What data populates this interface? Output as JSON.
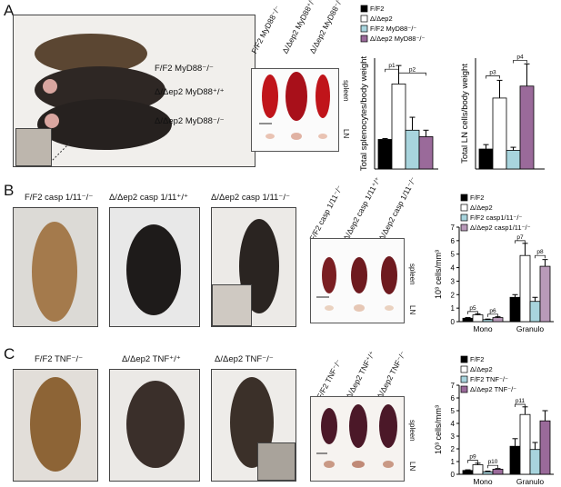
{
  "panels": {
    "A": {
      "letter": "A",
      "mouse_labels": [
        "F/F2 MyD88⁻/⁻",
        "Δ/Δep2 MyD88⁺/⁺",
        "Δ/Δep2 MyD88⁻/⁻"
      ],
      "organ_cols": [
        "F/F2 MyD88⁻/⁻",
        "Δ/Δep2 MyD88⁺/⁺",
        "Δ/Δep2 MyD88⁻/⁻"
      ],
      "organ_rows": [
        "spleen",
        "LN"
      ]
    },
    "B": {
      "letter": "B",
      "mouse_labels": [
        "F/F2 casp 1/11⁻/⁻",
        "Δ/Δep2 casp 1/11⁺/⁺",
        "Δ/Δep2 casp 1/11⁻/⁻"
      ],
      "organ_cols": [
        "F/F2 casp 1/11⁻/⁻",
        "Δ/Δep2 casp 1/11⁺/⁺",
        "Δ/Δep2 casp 1/11⁻/⁻"
      ],
      "organ_rows": [
        "spleen",
        "LN"
      ]
    },
    "C": {
      "letter": "C",
      "mouse_labels": [
        "F/F2 TNF⁻/⁻",
        "Δ/Δep2 TNF⁺/⁺",
        "Δ/Δep2 TNF⁻/⁻"
      ],
      "organ_cols": [
        "F/F2 TNF⁻/⁻",
        "Δ/Δep2 TNF⁺/⁺",
        "Δ/Δep2 TNF⁻/⁻"
      ],
      "organ_rows": [
        "spleen",
        "LN"
      ]
    }
  },
  "colors": {
    "black": "#000000",
    "white": "#ffffff",
    "blue": "#a8d4dd",
    "purple": "#9a6a9a",
    "purple_light": "#b99ab9"
  },
  "chart_data": [
    {
      "id": "A1",
      "type": "bar",
      "categories": [
        ""
      ],
      "series": [
        {
          "name": "F/F2",
          "values": [
            1.6
          ],
          "err": [
            0.05
          ],
          "color": "#000000"
        },
        {
          "name": "Δ/Δep2",
          "values": [
            4.6
          ],
          "err": [
            1.0
          ],
          "color": "#ffffff"
        },
        {
          "name": "F/F2 MyD88⁻/⁻",
          "values": [
            2.1
          ],
          "err": [
            0.7
          ],
          "color": "#a8d4dd"
        },
        {
          "name": "Δ/Δep2 MyD88⁻/⁻",
          "values": [
            1.75
          ],
          "err": [
            0.35
          ],
          "color": "#9a6a9a"
        }
      ],
      "ylim": [
        0,
        6
      ],
      "ylabel": "Total splenocytes/body weight",
      "annotations": [
        "p1",
        "p2"
      ]
    },
    {
      "id": "A2",
      "type": "bar",
      "categories": [
        ""
      ],
      "series": [
        {
          "name": "F/F2",
          "values": [
            0.45
          ],
          "err": [
            0.1
          ],
          "color": "#000000"
        },
        {
          "name": "Δ/Δep2",
          "values": [
            1.6
          ],
          "err": [
            0.4
          ],
          "color": "#ffffff"
        },
        {
          "name": "F/F2 MyD88⁻/⁻",
          "values": [
            0.42
          ],
          "err": [
            0.07
          ],
          "color": "#a8d4dd"
        },
        {
          "name": "Δ/Δep2 MyD88⁻/⁻",
          "values": [
            1.87
          ],
          "err": [
            0.5
          ],
          "color": "#9a6a9a"
        }
      ],
      "ylim": [
        0,
        2.5
      ],
      "ylabel": "Total LN cells/body weight",
      "annotations": [
        "p3",
        "p4"
      ]
    },
    {
      "id": "B",
      "type": "bar",
      "categories": [
        "Mono",
        "Granulo"
      ],
      "series": [
        {
          "name": "F/F2",
          "values": [
            0.25,
            1.8
          ],
          "err": [
            0.05,
            0.2
          ],
          "color": "#000000"
        },
        {
          "name": "Δ/Δep2",
          "values": [
            0.5,
            4.9
          ],
          "err": [
            0.08,
            0.9
          ],
          "color": "#ffffff"
        },
        {
          "name": "F/F2 casp1/11⁻/⁻",
          "values": [
            0.15,
            1.5
          ],
          "err": [
            0.04,
            0.3
          ],
          "color": "#a8d4dd"
        },
        {
          "name": "Δ/Δep2 casp1/11⁻/⁻",
          "values": [
            0.3,
            4.1
          ],
          "err": [
            0.06,
            0.5
          ],
          "color": "#b99ab9"
        }
      ],
      "ylim": [
        0,
        7
      ],
      "yticks": [
        0,
        1,
        2,
        3,
        4,
        5,
        6,
        7
      ],
      "ylabel": "10³ cells/mm³",
      "annotations": [
        "p5",
        "p6",
        "p7",
        "p8"
      ]
    },
    {
      "id": "C",
      "type": "bar",
      "categories": [
        "Mono",
        "Granulo"
      ],
      "series": [
        {
          "name": "F/F2",
          "values": [
            0.3,
            2.2
          ],
          "err": [
            0.05,
            0.6
          ],
          "color": "#000000"
        },
        {
          "name": "Δ/Δep2",
          "values": [
            0.75,
            4.7
          ],
          "err": [
            0.12,
            0.6
          ],
          "color": "#ffffff"
        },
        {
          "name": "F/F2 TNF⁻/⁻",
          "values": [
            0.2,
            1.95
          ],
          "err": [
            0.05,
            0.55
          ],
          "color": "#a8d4dd"
        },
        {
          "name": "Δ/Δep2 TNF⁻/⁻",
          "values": [
            0.4,
            4.2
          ],
          "err": [
            0.05,
            0.8
          ],
          "color": "#9a6a9a"
        }
      ],
      "ylim": [
        0,
        7
      ],
      "yticks": [
        0,
        1,
        2,
        3,
        4,
        5,
        6,
        7
      ],
      "ylabel": "10³ cells/mm³",
      "annotations": [
        "p9",
        "p10",
        "p11"
      ]
    }
  ]
}
